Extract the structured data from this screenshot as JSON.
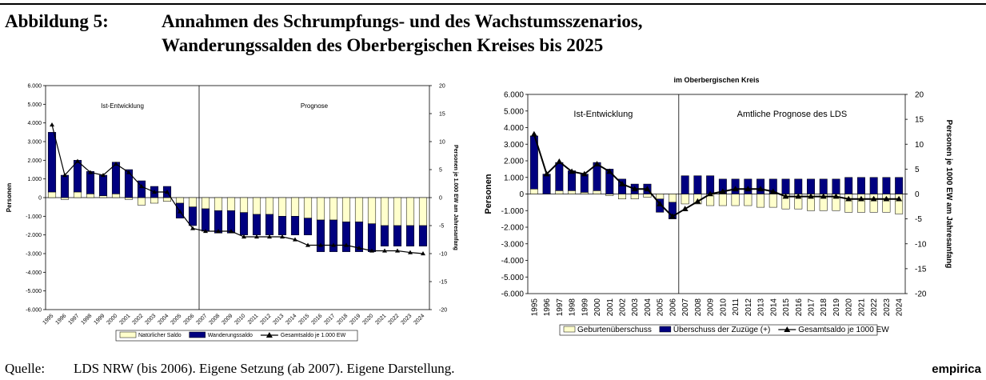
{
  "header": {
    "label": "Abbildung 5:",
    "title_lines": [
      "Annahmen des Schrumpfungs- und des Wachstumsszenarios,",
      "Wanderungssalden des Oberbergischen Kreises bis 2025"
    ]
  },
  "chart_data": [
    {
      "type": "bar",
      "stacked": true,
      "categories": [
        "1995",
        "1996",
        "1997",
        "1998",
        "1999",
        "2000",
        "2001",
        "2002",
        "2003",
        "2004",
        "2005",
        "2006",
        "2007",
        "2008",
        "2009",
        "2010",
        "2011",
        "2012",
        "2013",
        "2014",
        "2015",
        "2016",
        "2017",
        "2018",
        "2019",
        "2020",
        "2021",
        "2022",
        "2023",
        "2024"
      ],
      "series": [
        {
          "name": "Natürlicher Saldo",
          "color": "#ffffcc",
          "values": [
            300,
            -100,
            300,
            200,
            100,
            200,
            -100,
            -400,
            -300,
            -200,
            -300,
            -500,
            -600,
            -700,
            -700,
            -800,
            -900,
            -900,
            -1000,
            -1000,
            -1100,
            -1200,
            -1200,
            -1300,
            -1300,
            -1400,
            -1500,
            -1500,
            -1500,
            -1500
          ]
        },
        {
          "name": "Wanderungssaldo",
          "color": "#000080",
          "values": [
            3200,
            1200,
            1700,
            1200,
            1100,
            1700,
            1500,
            900,
            600,
            600,
            -800,
            -1000,
            -1200,
            -1200,
            -1200,
            -1200,
            -1100,
            -1100,
            -1000,
            -1000,
            -900,
            -1700,
            -1700,
            -1600,
            -1600,
            -1500,
            -1100,
            -1100,
            -1100,
            -1100
          ]
        },
        {
          "name": "Gesamtsaldo je 1.000 EW",
          "color": "#000000",
          "type": "line",
          "axis": "y2",
          "values": [
            13,
            4,
            6.5,
            4.5,
            4,
            6,
            4.5,
            2,
            1,
            1,
            -2.5,
            -5.5,
            -6,
            -6,
            -6,
            -7,
            -7,
            -7,
            -7,
            -7.5,
            -8.5,
            -8.5,
            -8.5,
            -8.5,
            -9,
            -9.5,
            -9.5,
            -9.5,
            -9.8,
            -10
          ]
        }
      ],
      "ylabel": "Personen",
      "y2label": "Personen je 1.000 EW am Jahresanfang",
      "ylim": [
        -6000,
        6000
      ],
      "yticks": [
        {
          "value": 6000,
          "label": "6.000"
        },
        {
          "value": 5000,
          "label": "5.000"
        },
        {
          "value": 4000,
          "label": "4.000"
        },
        {
          "value": 3000,
          "label": "3.000"
        },
        {
          "value": 2000,
          "label": "2.000"
        },
        {
          "value": 1000,
          "label": "1.000"
        },
        0,
        {
          "value": -1000,
          "label": "-1.000"
        },
        {
          "value": -2000,
          "label": "-2.000"
        },
        {
          "value": -3000,
          "label": "-3.000"
        },
        {
          "value": -4000,
          "label": "-4.000"
        },
        {
          "value": -5000,
          "label": "-5.000"
        },
        {
          "value": -6000,
          "label": "-6.000"
        }
      ],
      "y2lim": [
        -20,
        20
      ],
      "y2ticks": [
        20,
        15,
        10,
        5,
        0,
        -5,
        -10,
        -15,
        -20
      ],
      "divider_category": "2007",
      "annotations": [
        "Ist-Entwicklung",
        "Prognose"
      ]
    },
    {
      "type": "bar",
      "stacked": true,
      "title": "im Oberbergischen Kreis",
      "categories": [
        "1995",
        "1996",
        "1997",
        "1998",
        "1999",
        "2000",
        "2001",
        "2002",
        "2003",
        "2004",
        "2005",
        "2006",
        "2007",
        "2008",
        "2009",
        "2010",
        "2011",
        "2012",
        "2013",
        "2014",
        "2015",
        "2016",
        "2017",
        "2018",
        "2019",
        "2020",
        "2021",
        "2022",
        "2023",
        "2024"
      ],
      "series": [
        {
          "name": "Geburtenüberschuss",
          "color": "#ffffcc",
          "values": [
            300,
            0,
            200,
            200,
            100,
            200,
            -100,
            -300,
            -300,
            -200,
            -300,
            -500,
            -600,
            -600,
            -700,
            -700,
            -700,
            -700,
            -800,
            -800,
            -900,
            -900,
            -1000,
            -1000,
            -1000,
            -1100,
            -1100,
            -1100,
            -1100,
            -1200
          ]
        },
        {
          "name": "Überschuss der Zuzüge (+)",
          "color": "#000080",
          "values": [
            3200,
            1200,
            1700,
            1200,
            1100,
            1700,
            1500,
            900,
            600,
            600,
            -800,
            -1000,
            1100,
            1100,
            1100,
            900,
            900,
            900,
            900,
            900,
            900,
            900,
            900,
            900,
            900,
            1000,
            1000,
            1000,
            1000,
            1000
          ]
        },
        {
          "name": "Gesamtsaldo je 1000 EW",
          "color": "#000000",
          "type": "line",
          "axis": "y2",
          "values": [
            12,
            4,
            6.5,
            4.5,
            4,
            6,
            4.5,
            2,
            1,
            1,
            -2,
            -4.5,
            -3,
            -1.5,
            0,
            0.5,
            1,
            1,
            1,
            0.5,
            -0.5,
            -0.5,
            -0.5,
            -0.5,
            -0.5,
            -1,
            -1,
            -1,
            -1,
            -1
          ]
        }
      ],
      "ylabel": "Personen",
      "y2label": "Personen je 1000 EW am Jahresanfang",
      "ylim": [
        -6000,
        6000
      ],
      "yticks": [
        {
          "value": 6000,
          "label": "6.000"
        },
        {
          "value": 5000,
          "label": "5.000"
        },
        {
          "value": 4000,
          "label": "4.000"
        },
        {
          "value": 3000,
          "label": "3.000"
        },
        {
          "value": 2000,
          "label": "2.000"
        },
        {
          "value": 1000,
          "label": "1.000"
        },
        0,
        {
          "value": -1000,
          "label": "-1.000"
        },
        {
          "value": -2000,
          "label": "-2.000"
        },
        {
          "value": -3000,
          "label": "-3.000"
        },
        {
          "value": -4000,
          "label": "-4.000"
        },
        {
          "value": -5000,
          "label": "-5.000"
        },
        {
          "value": -6000,
          "label": "-6.000"
        }
      ],
      "y2lim": [
        -20,
        20
      ],
      "y2ticks": [
        20,
        15,
        10,
        5,
        0,
        -5,
        -10,
        -15,
        -20
      ],
      "divider_category": "2007",
      "annotations": [
        "Ist-Entwicklung",
        "Amtliche Prognose des LDS"
      ]
    }
  ],
  "footer": {
    "label": "Quelle:",
    "source": "LDS NRW (bis 2006). Eigene Setzung (ab 2007). Eigene Darstellung.",
    "brand": "empirica"
  }
}
